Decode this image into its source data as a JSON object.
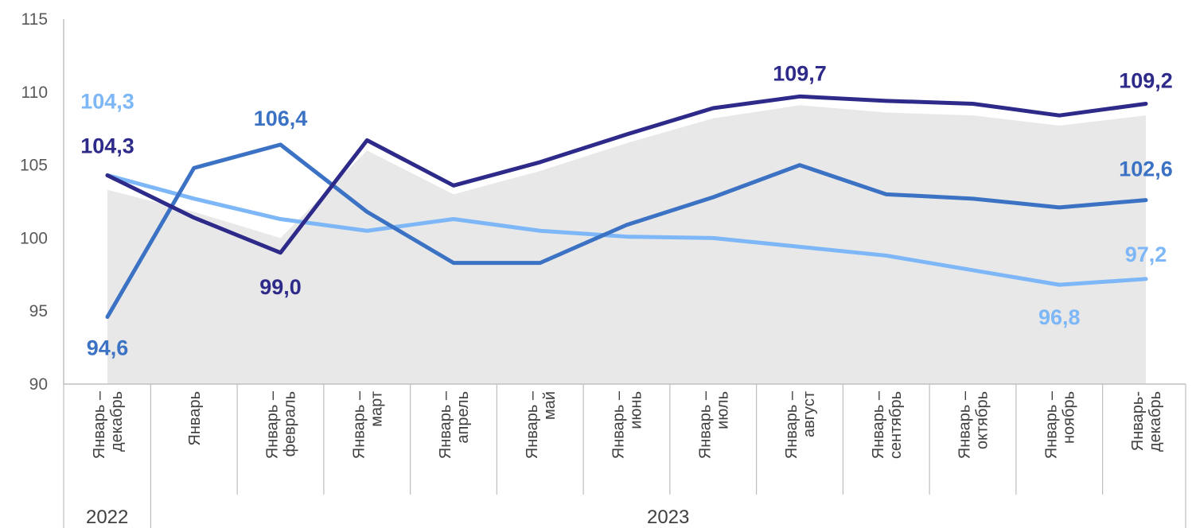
{
  "chart_data": {
    "type": "line",
    "title": "",
    "xlabel": "",
    "ylabel": "",
    "ylim": [
      90,
      115
    ],
    "yticks": [
      "90",
      "95",
      "100",
      "105",
      "110",
      "115"
    ],
    "grid": false,
    "legend": "none",
    "categories": [
      [
        "Январь –",
        "декабрь"
      ],
      [
        "Январь"
      ],
      [
        "Январь –",
        "февраль"
      ],
      [
        "Январь –",
        "март"
      ],
      [
        "Январь –",
        "апрель"
      ],
      [
        "Январь –",
        "май"
      ],
      [
        "Январь –",
        "июнь"
      ],
      [
        "Январь –",
        "июль"
      ],
      [
        "Январь –",
        "август"
      ],
      [
        "Январь –",
        "сентябрь"
      ],
      [
        "Январь –",
        "октябрь"
      ],
      [
        "Январь –",
        "ноябрь"
      ],
      [
        "Январь-",
        "декабрь"
      ]
    ],
    "year_groups": [
      {
        "label": "2022",
        "from": 0,
        "to": 0
      },
      {
        "label": "2023",
        "from": 1,
        "to": 12
      }
    ],
    "area": {
      "color": "#e8e8e8",
      "values": [
        103.3,
        101.8,
        100.0,
        106.0,
        103.0,
        104.6,
        106.5,
        108.2,
        109.1,
        108.6,
        108.4,
        107.7,
        108.4
      ]
    },
    "series": [
      {
        "color": "#2e2a8a",
        "values": [
          104.3,
          101.4,
          99.0,
          106.7,
          103.6,
          105.2,
          107.1,
          108.9,
          109.7,
          109.4,
          109.2,
          108.4,
          109.2
        ],
        "labels": [
          {
            "index": 0,
            "text": "104,3",
            "dx": 0,
            "dy": -28
          },
          {
            "index": 2,
            "text": "99,0",
            "dx": 0,
            "dy": 52
          },
          {
            "index": 8,
            "text": "109,7",
            "dx": 0,
            "dy": -20
          },
          {
            "index": 12,
            "text": "109,2",
            "dx": 0,
            "dy": -20
          }
        ]
      },
      {
        "color": "#3b72c4",
        "values": [
          94.6,
          104.8,
          106.4,
          101.8,
          98.3,
          98.3,
          100.9,
          102.8,
          105.0,
          103.0,
          102.7,
          102.1,
          102.6
        ],
        "labels": [
          {
            "index": 0,
            "text": "94,6",
            "dx": 0,
            "dy": 48
          },
          {
            "index": 2,
            "text": "106,4",
            "dx": 0,
            "dy": -24
          },
          {
            "index": 12,
            "text": "102,6",
            "dx": 0,
            "dy": -30
          }
        ]
      },
      {
        "color": "#7db7f7",
        "values": [
          104.3,
          102.7,
          101.3,
          100.5,
          101.3,
          100.5,
          100.1,
          100.0,
          99.4,
          98.8,
          97.8,
          96.8,
          97.2
        ],
        "labels": [
          {
            "index": 0,
            "text": "104,3",
            "dx": 0,
            "dy": -84
          },
          {
            "index": 11,
            "text": "96,8",
            "dx": 0,
            "dy": 50
          },
          {
            "index": 12,
            "text": "97,2",
            "dx": 0,
            "dy": -22
          }
        ]
      }
    ]
  }
}
